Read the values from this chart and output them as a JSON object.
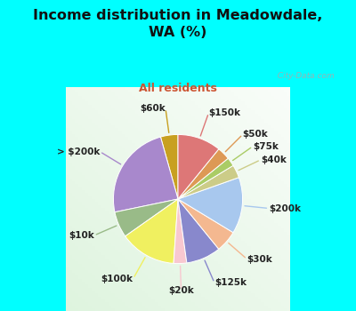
{
  "title": "Income distribution in Meadowdale,\nWA (%)",
  "subtitle": "All residents",
  "title_color": "#111111",
  "subtitle_color": "#cc5533",
  "bg_cyan": "#00ffff",
  "watermark": "  City-Data.com",
  "labels": [
    "$60k",
    "> $200k",
    "$10k",
    "$100k",
    "$20k",
    "$125k",
    "$30k",
    "$200k",
    "$40k",
    "$75k",
    "$50k",
    "$150k"
  ],
  "values": [
    4,
    22,
    6,
    13,
    3,
    8,
    5,
    13,
    3,
    2,
    3,
    10
  ],
  "colors": [
    "#c8a020",
    "#a888cc",
    "#99bb88",
    "#f0f060",
    "#f8c8d0",
    "#8888cc",
    "#f4b890",
    "#a8c8ee",
    "#cccc88",
    "#aacc66",
    "#dd9955",
    "#dd7777"
  ],
  "startangle": 90,
  "figsize": [
    4.0,
    3.5
  ],
  "dpi": 100
}
